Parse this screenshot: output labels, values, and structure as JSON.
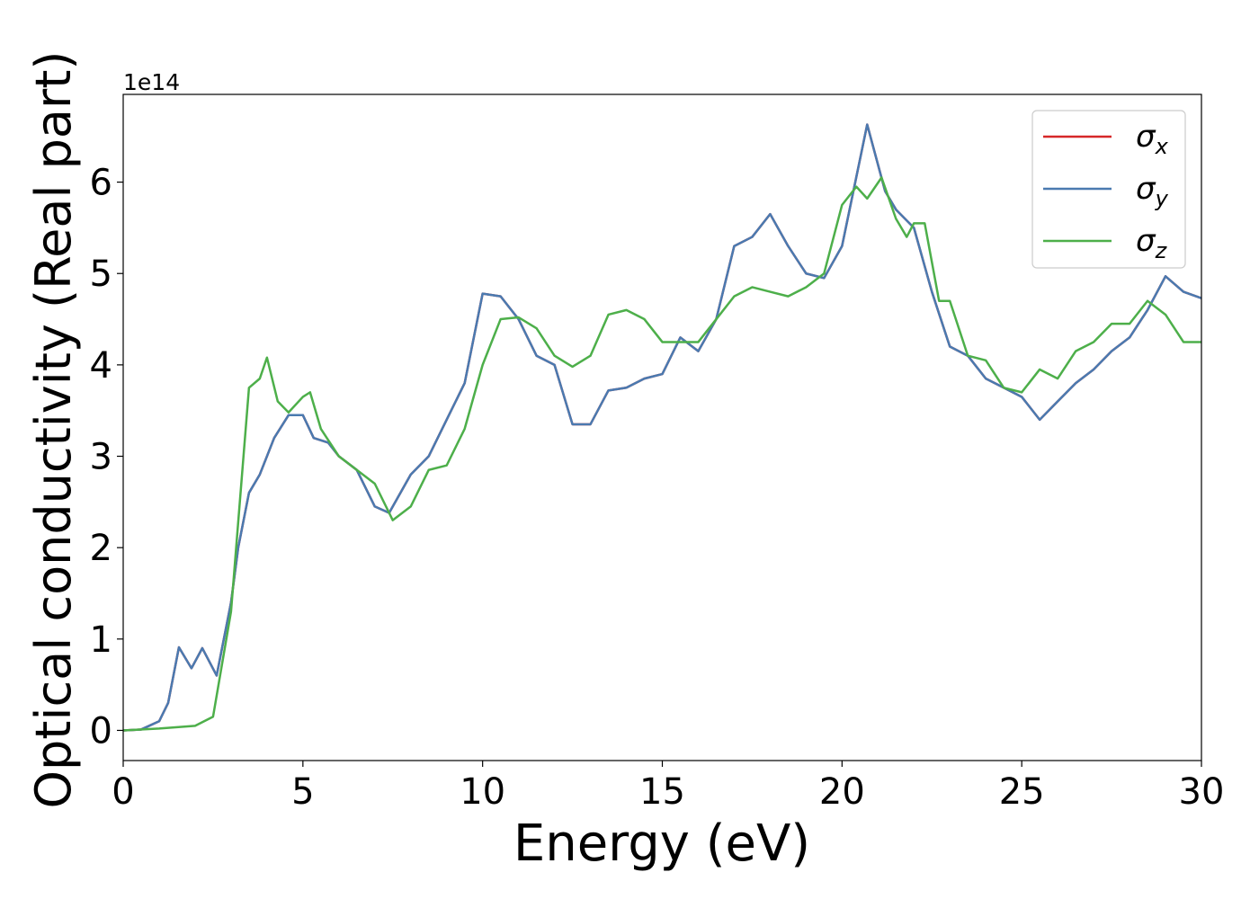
{
  "chart_data": {
    "type": "line",
    "xlabel": "Energy (eV)",
    "ylabel": "Optical conductivity (Real part)",
    "y_offset_text": "1e14",
    "xlim": [
      0,
      30
    ],
    "xticks": [
      0,
      5,
      10,
      15,
      20,
      25,
      30
    ],
    "ylim": [
      -0.33,
      6.96
    ],
    "yticks": [
      0,
      1,
      2,
      3,
      4,
      5,
      6
    ],
    "legend": "upper right",
    "series": [
      {
        "name": "σx",
        "color": "#d62728",
        "x": [
          0,
          0.5,
          1,
          1.25,
          1.55,
          1.9,
          2.2,
          2.6,
          3,
          3.2,
          3.5,
          3.8,
          4.2,
          4.6,
          5,
          5.3,
          5.7,
          6,
          6.5,
          7,
          7.4,
          8,
          8.5,
          9,
          9.5,
          10,
          10.5,
          11,
          11.5,
          12,
          12.5,
          13,
          13.5,
          14,
          14.5,
          15,
          15.5,
          16,
          16.5,
          17,
          17.5,
          18,
          18.5,
          19,
          19.5,
          20,
          20.7,
          21.2,
          21.5,
          22,
          22.5,
          23,
          23.5,
          24,
          24.5,
          25,
          25.5,
          26,
          26.5,
          27,
          27.5,
          28,
          28.5,
          29,
          29.5,
          30
        ],
        "values": [
          0,
          0.01,
          0.1,
          0.3,
          0.91,
          0.68,
          0.9,
          0.6,
          1.4,
          2.0,
          2.6,
          2.8,
          3.2,
          3.45,
          3.45,
          3.2,
          3.15,
          3.0,
          2.85,
          2.45,
          2.38,
          2.8,
          3.0,
          3.4,
          3.8,
          4.78,
          4.75,
          4.5,
          4.1,
          4.0,
          3.35,
          3.35,
          3.72,
          3.75,
          3.85,
          3.9,
          4.3,
          4.15,
          4.5,
          5.3,
          5.4,
          5.65,
          5.3,
          5.0,
          4.95,
          5.3,
          6.63,
          5.9,
          5.7,
          5.5,
          4.8,
          4.2,
          4.1,
          3.85,
          3.75,
          3.65,
          3.4,
          3.6,
          3.8,
          3.95,
          4.15,
          4.3,
          4.6,
          4.97,
          4.8,
          4.73
        ]
      },
      {
        "name": "σy",
        "color": "#4a7ab0",
        "x": [
          0,
          0.5,
          1,
          1.25,
          1.55,
          1.9,
          2.2,
          2.6,
          3,
          3.2,
          3.5,
          3.8,
          4.2,
          4.6,
          5,
          5.3,
          5.7,
          6,
          6.5,
          7,
          7.4,
          8,
          8.5,
          9,
          9.5,
          10,
          10.5,
          11,
          11.5,
          12,
          12.5,
          13,
          13.5,
          14,
          14.5,
          15,
          15.5,
          16,
          16.5,
          17,
          17.5,
          18,
          18.5,
          19,
          19.5,
          20,
          20.7,
          21.2,
          21.5,
          22,
          22.5,
          23,
          23.5,
          24,
          24.5,
          25,
          25.5,
          26,
          26.5,
          27,
          27.5,
          28,
          28.5,
          29,
          29.5,
          30
        ],
        "values": [
          0,
          0.01,
          0.1,
          0.3,
          0.91,
          0.68,
          0.9,
          0.6,
          1.4,
          2.0,
          2.6,
          2.8,
          3.2,
          3.45,
          3.45,
          3.2,
          3.15,
          3.0,
          2.85,
          2.45,
          2.38,
          2.8,
          3.0,
          3.4,
          3.8,
          4.78,
          4.75,
          4.5,
          4.1,
          4.0,
          3.35,
          3.35,
          3.72,
          3.75,
          3.85,
          3.9,
          4.3,
          4.15,
          4.5,
          5.3,
          5.4,
          5.65,
          5.3,
          5.0,
          4.95,
          5.3,
          6.63,
          5.9,
          5.7,
          5.5,
          4.8,
          4.2,
          4.1,
          3.85,
          3.75,
          3.65,
          3.4,
          3.6,
          3.8,
          3.95,
          4.15,
          4.3,
          4.6,
          4.97,
          4.8,
          4.73
        ]
      },
      {
        "name": "σz",
        "color": "#4daf4a",
        "x": [
          0,
          1,
          2,
          2.5,
          3,
          3.5,
          3.8,
          4,
          4.3,
          4.6,
          5,
          5.2,
          5.5,
          6,
          6.5,
          7,
          7.5,
          8,
          8.5,
          9,
          9.5,
          10,
          10.5,
          11,
          11.5,
          12,
          12.5,
          13,
          13.5,
          14,
          14.5,
          15,
          15.5,
          16,
          16.5,
          17,
          17.5,
          18,
          18.5,
          19,
          19.5,
          20,
          20.4,
          20.7,
          21.1,
          21.5,
          21.8,
          22,
          22.3,
          22.7,
          23,
          23.5,
          24,
          24.5,
          25,
          25.5,
          26,
          26.5,
          27,
          27.5,
          28,
          28.5,
          29,
          29.5,
          30
        ],
        "values": [
          0,
          0.02,
          0.05,
          0.15,
          1.3,
          3.75,
          3.85,
          4.08,
          3.6,
          3.48,
          3.65,
          3.7,
          3.3,
          3.0,
          2.85,
          2.7,
          2.3,
          2.45,
          2.85,
          2.9,
          3.3,
          4.0,
          4.5,
          4.52,
          4.4,
          4.1,
          3.98,
          4.1,
          4.55,
          4.6,
          4.5,
          4.25,
          4.25,
          4.25,
          4.5,
          4.75,
          4.85,
          4.8,
          4.75,
          4.85,
          5.0,
          5.75,
          5.95,
          5.82,
          6.05,
          5.6,
          5.4,
          5.55,
          5.55,
          4.7,
          4.7,
          4.1,
          4.05,
          3.75,
          3.7,
          3.95,
          3.85,
          4.15,
          4.25,
          4.45,
          4.45,
          4.7,
          4.55,
          4.25,
          4.25
        ]
      }
    ]
  }
}
